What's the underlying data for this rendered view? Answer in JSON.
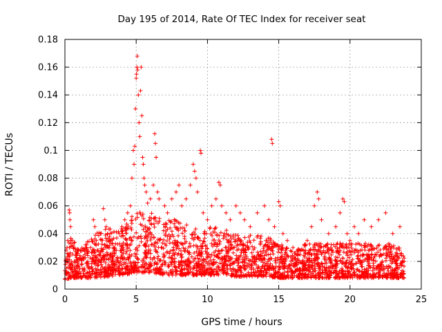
{
  "chart_data": {
    "type": "scatter",
    "title": "Day 195 of 2014, Rate Of TEC Index for receiver seat",
    "xlabel": "GPS time / hours",
    "ylabel": "ROTI / TECUs",
    "xlim": [
      0,
      25
    ],
    "ylim": [
      0,
      0.18
    ],
    "xticks": [
      0,
      5,
      10,
      15,
      20,
      25
    ],
    "yticks": [
      0,
      0.02,
      0.04,
      0.06,
      0.08,
      0.1,
      0.12,
      0.14,
      0.16,
      0.18
    ],
    "xtick_labels": [
      "0",
      "5",
      "10",
      "15",
      "20",
      "25"
    ],
    "ytick_labels": [
      "0",
      "0.02",
      "0.04",
      "0.06",
      "0.08",
      "0.1",
      "0.12",
      "0.14",
      "0.16",
      "0.18"
    ],
    "grid": true,
    "marker": "+",
    "color": "#ff0000",
    "series": [
      {
        "name": "ROTI",
        "points": [
          [
            0.1,
            0.015
          ],
          [
            0.15,
            0.03
          ],
          [
            0.2,
            0.035
          ],
          [
            0.25,
            0.025
          ],
          [
            0.3,
            0.057
          ],
          [
            0.33,
            0.055
          ],
          [
            0.35,
            0.05
          ],
          [
            0.4,
            0.045
          ],
          [
            0.45,
            0.02
          ],
          [
            0.5,
            0.012
          ],
          [
            0.7,
            0.02
          ],
          [
            0.9,
            0.015
          ],
          [
            1.0,
            0.022
          ],
          [
            1.2,
            0.018
          ],
          [
            1.4,
            0.025
          ],
          [
            1.6,
            0.02
          ],
          [
            1.8,
            0.03
          ],
          [
            2.0,
            0.05
          ],
          [
            2.1,
            0.045
          ],
          [
            2.2,
            0.035
          ],
          [
            2.5,
            0.04
          ],
          [
            2.7,
            0.058
          ],
          [
            2.8,
            0.05
          ],
          [
            2.9,
            0.045
          ],
          [
            3.0,
            0.04
          ],
          [
            3.2,
            0.035
          ],
          [
            3.4,
            0.03
          ],
          [
            3.6,
            0.028
          ],
          [
            3.8,
            0.04
          ],
          [
            4.0,
            0.045
          ],
          [
            4.2,
            0.05
          ],
          [
            4.4,
            0.055
          ],
          [
            4.6,
            0.06
          ],
          [
            4.7,
            0.08
          ],
          [
            4.8,
            0.1
          ],
          [
            4.85,
            0.09
          ],
          [
            4.9,
            0.103
          ],
          [
            4.95,
            0.13
          ],
          [
            5.0,
            0.152
          ],
          [
            5.02,
            0.155
          ],
          [
            5.05,
            0.16
          ],
          [
            5.08,
            0.168
          ],
          [
            5.1,
            0.158
          ],
          [
            5.15,
            0.14
          ],
          [
            5.2,
            0.12
          ],
          [
            5.25,
            0.11
          ],
          [
            5.3,
            0.143
          ],
          [
            5.35,
            0.16
          ],
          [
            5.4,
            0.125
          ],
          [
            5.45,
            0.095
          ],
          [
            5.5,
            0.09
          ],
          [
            5.55,
            0.08
          ],
          [
            5.6,
            0.075
          ],
          [
            5.7,
            0.07
          ],
          [
            5.8,
            0.062
          ],
          [
            6.0,
            0.065
          ],
          [
            6.2,
            0.075
          ],
          [
            6.3,
            0.112
          ],
          [
            6.35,
            0.105
          ],
          [
            6.4,
            0.095
          ],
          [
            6.5,
            0.07
          ],
          [
            6.6,
            0.065
          ],
          [
            7.0,
            0.06
          ],
          [
            7.2,
            0.055
          ],
          [
            7.5,
            0.065
          ],
          [
            7.8,
            0.07
          ],
          [
            8.0,
            0.075
          ],
          [
            8.2,
            0.06
          ],
          [
            8.5,
            0.065
          ],
          [
            8.8,
            0.075
          ],
          [
            9.0,
            0.09
          ],
          [
            9.1,
            0.085
          ],
          [
            9.2,
            0.08
          ],
          [
            9.3,
            0.07
          ],
          [
            9.5,
            0.1
          ],
          [
            9.55,
            0.098
          ],
          [
            9.7,
            0.055
          ],
          [
            10.0,
            0.05
          ],
          [
            10.3,
            0.06
          ],
          [
            10.6,
            0.065
          ],
          [
            10.8,
            0.077
          ],
          [
            10.9,
            0.075
          ],
          [
            11.0,
            0.06
          ],
          [
            11.3,
            0.055
          ],
          [
            11.6,
            0.05
          ],
          [
            12.0,
            0.06
          ],
          [
            12.3,
            0.055
          ],
          [
            12.6,
            0.05
          ],
          [
            13.0,
            0.045
          ],
          [
            13.5,
            0.055
          ],
          [
            14.0,
            0.06
          ],
          [
            14.3,
            0.05
          ],
          [
            14.5,
            0.108
          ],
          [
            14.55,
            0.105
          ],
          [
            14.7,
            0.045
          ],
          [
            15.0,
            0.063
          ],
          [
            15.1,
            0.06
          ],
          [
            15.3,
            0.04
          ],
          [
            15.6,
            0.035
          ],
          [
            16.0,
            0.03
          ],
          [
            16.5,
            0.025
          ],
          [
            17.0,
            0.035
          ],
          [
            17.3,
            0.045
          ],
          [
            17.5,
            0.06
          ],
          [
            17.7,
            0.07
          ],
          [
            17.8,
            0.065
          ],
          [
            18.0,
            0.05
          ],
          [
            18.5,
            0.04
          ],
          [
            19.0,
            0.045
          ],
          [
            19.3,
            0.055
          ],
          [
            19.5,
            0.065
          ],
          [
            19.6,
            0.063
          ],
          [
            19.8,
            0.04
          ],
          [
            20.0,
            0.035
          ],
          [
            20.3,
            0.045
          ],
          [
            20.6,
            0.04
          ],
          [
            21.0,
            0.05
          ],
          [
            21.5,
            0.045
          ],
          [
            22.0,
            0.05
          ],
          [
            22.5,
            0.055
          ],
          [
            23.0,
            0.04
          ],
          [
            23.5,
            0.045
          ],
          [
            23.8,
            0.02
          ]
        ]
      }
    ],
    "dense_band": {
      "x_range": [
        0,
        23.8
      ],
      "envelope_hours": [
        0,
        0.5,
        1,
        2,
        3,
        4,
        5,
        6,
        7,
        8,
        9,
        10,
        11,
        12,
        13,
        14,
        15,
        16,
        17,
        18,
        19,
        20,
        21,
        22,
        23,
        23.8
      ],
      "envelope_upper": [
        0.025,
        0.035,
        0.025,
        0.035,
        0.04,
        0.04,
        0.05,
        0.05,
        0.045,
        0.045,
        0.04,
        0.04,
        0.04,
        0.035,
        0.035,
        0.035,
        0.03,
        0.025,
        0.03,
        0.03,
        0.03,
        0.03,
        0.03,
        0.03,
        0.03,
        0.025
      ],
      "envelope_lower": [
        0.007,
        0.008,
        0.008,
        0.008,
        0.009,
        0.01,
        0.012,
        0.012,
        0.01,
        0.01,
        0.01,
        0.01,
        0.01,
        0.009,
        0.009,
        0.009,
        0.008,
        0.008,
        0.008,
        0.008,
        0.008,
        0.008,
        0.008,
        0.008,
        0.008,
        0.008
      ]
    }
  }
}
